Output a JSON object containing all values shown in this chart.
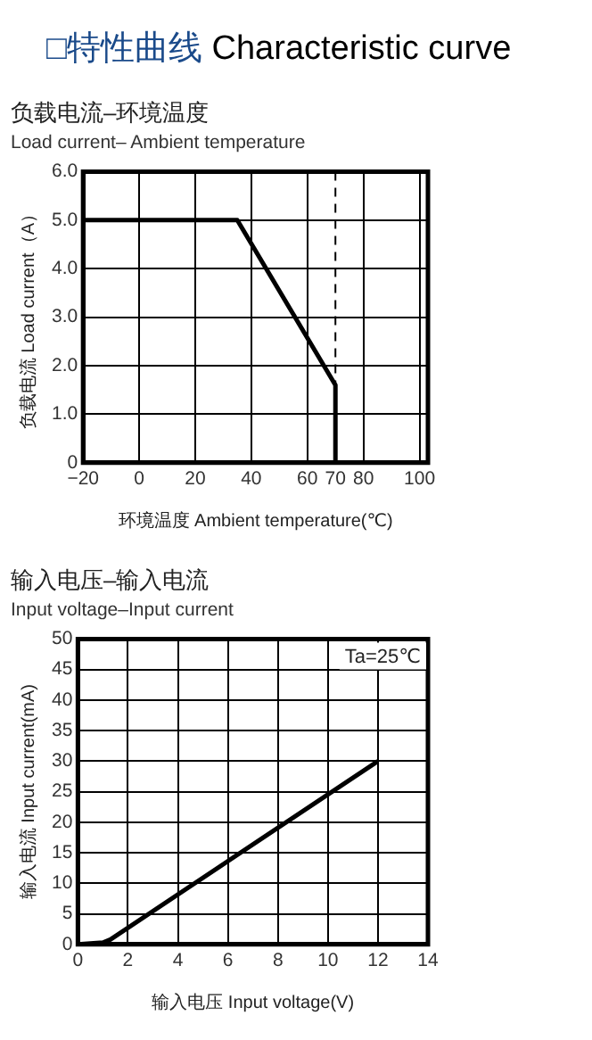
{
  "chart_data": [
    {
      "type": "line",
      "title": "负载电流–环境温度",
      "subtitle": "Load current– Ambient temperature",
      "xlabel": "环境温度 Ambient temperature(℃)",
      "ylabel": "负载电流 Load current（A）",
      "annotations": [
        "□特性曲线 Characteristic curve"
      ],
      "xlim": [
        -20,
        103
      ],
      "xticks": [
        {
          "value": -20,
          "label": "−20"
        },
        0,
        20,
        40,
        60,
        70,
        80,
        100
      ],
      "ylim": [
        0,
        6
      ],
      "yticks": [
        0,
        {
          "value": 1,
          "label": "1.0"
        },
        {
          "value": 2,
          "label": "2.0"
        },
        {
          "value": 3,
          "label": "3.0"
        },
        {
          "value": 4,
          "label": "4.0"
        },
        {
          "value": 5,
          "label": "5.0"
        },
        {
          "value": 6,
          "label": "6.0"
        }
      ],
      "grid": true,
      "legend": false,
      "marker": "none",
      "ref_lines": [
        {
          "axis": "x",
          "value": 70,
          "line_style": "dashed",
          "color": "#000000"
        }
      ],
      "series": [
        {
          "color": "#000000",
          "x": [
            -20,
            35,
            70,
            70
          ],
          "values": [
            5,
            5,
            1.6,
            0
          ]
        }
      ]
    },
    {
      "type": "line",
      "title": "输入电压–输入电流",
      "subtitle": "Input voltage–Input current",
      "xlabel": "输入电压 Input voltage(V)",
      "ylabel": "输入电流 Input current(mA)",
      "annotations": [
        "Ta=25℃"
      ],
      "xlim": [
        0,
        14
      ],
      "xticks": [
        0,
        2,
        4,
        6,
        8,
        10,
        12,
        14
      ],
      "ylim": [
        0,
        50
      ],
      "yticks": [
        0,
        5,
        10,
        15,
        20,
        25,
        30,
        35,
        40,
        45,
        50
      ],
      "grid": true,
      "legend": false,
      "marker": "none",
      "series": [
        {
          "color": "#000000",
          "x": [
            0,
            1,
            1.3,
            12
          ],
          "values": [
            0,
            0.3,
            0.8,
            30
          ]
        }
      ]
    }
  ]
}
